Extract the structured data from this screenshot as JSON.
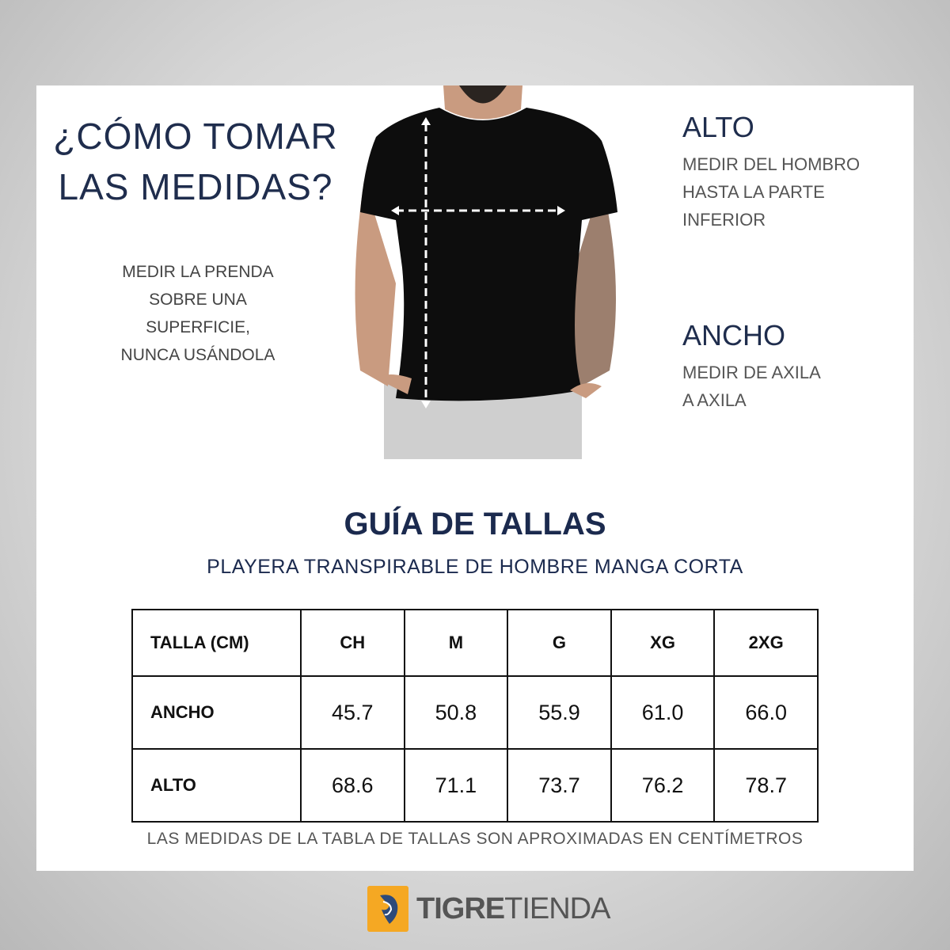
{
  "how_to": {
    "title_line1": "¿CÓMO TOMAR",
    "title_line2": "LAS MEDIDAS?",
    "note_lines": [
      "MEDIR LA PRENDA",
      "SOBRE UNA",
      "SUPERFICIE,",
      "NUNCA USÁNDOLA"
    ]
  },
  "alto": {
    "heading": "ALTO",
    "lines": [
      "MEDIR DEL HOMBRO",
      "HASTA LA PARTE",
      "INFERIOR"
    ]
  },
  "ancho": {
    "heading": "ANCHO",
    "lines": [
      "MEDIR DE AXILA",
      "A AXILA"
    ]
  },
  "guide": {
    "title": "GUÍA DE TALLAS",
    "subtitle": "PLAYERA TRANSPIRABLE DE HOMBRE MANGA CORTA"
  },
  "table": {
    "headers": [
      "TALLA (CM)",
      "CH",
      "M",
      "G",
      "XG",
      "2XG"
    ],
    "rows": [
      {
        "label": "ANCHO",
        "values": [
          "45.7",
          "50.8",
          "55.9",
          "61.0",
          "66.0"
        ]
      },
      {
        "label": "ALTO",
        "values": [
          "68.6",
          "71.1",
          "73.7",
          "76.2",
          "78.7"
        ]
      }
    ]
  },
  "footnote": "LAS MEDIDAS DE LA TABLA DE TALLAS SON APROXIMADAS EN CENTÍMETROS",
  "brand": {
    "bold": "TIGRE",
    "light": "TIENDA",
    "color": "#f5a823"
  },
  "colors": {
    "navy": "#1b2a4e"
  }
}
